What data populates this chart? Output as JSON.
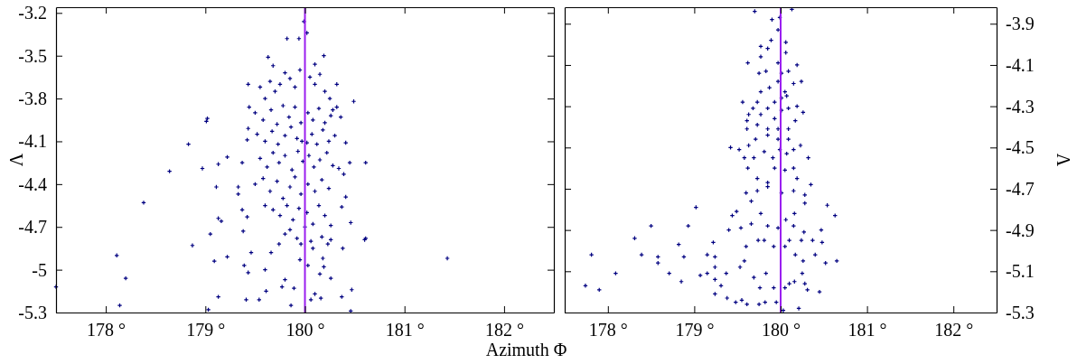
{
  "chart_data": [
    {
      "type": "scatter",
      "xlabel": "Azimuth Φ",
      "ylabel": "Λ",
      "xlim": [
        177.5,
        182.5
      ],
      "ylim": [
        -5.3,
        -3.16
      ],
      "xticks": [
        {
          "value": 178,
          "label": "178 °"
        },
        {
          "value": 179,
          "label": "179 °"
        },
        {
          "value": 180,
          "label": "180 °"
        },
        {
          "value": 181,
          "label": "181 °"
        },
        {
          "value": 182,
          "label": "182 °"
        }
      ],
      "yticks": [
        -3.2,
        -3.5,
        -3.8,
        -4.1,
        -4.4,
        -4.7,
        -5,
        -5.3
      ],
      "grid": false,
      "marker": "cross",
      "ref_lines": [
        {
          "axis": "x",
          "value": 180,
          "color": "#9a1ff0"
        }
      ],
      "series": [
        {
          "color": "#000080",
          "x": [
            177.5,
            178.11,
            178.14,
            178.2,
            178.38,
            178.64,
            178.83,
            178.87,
            178.97,
            179.02,
            179.01,
            179.03,
            179.05,
            179.09,
            179.11,
            179.13,
            179.13,
            179.13,
            179.16,
            179.22,
            179.22,
            181.43,
            180.49,
            180.61,
            180.61,
            180.6,
            180.46,
            180.47,
            180.46,
            180.37,
            180.38,
            180.37,
            180.41,
            180.45,
            180.39,
            180.34,
            180.41,
            180.36,
            180.32,
            180.32,
            180.19,
            180.1,
            180.02,
            179.94,
            179.82,
            179.99,
            179.63,
            179.68,
            179.43,
            179.44,
            179.43,
            179.42,
            179.37,
            179.33,
            179.33,
            179.37,
            179.42,
            179.38,
            179.39,
            179.43,
            179.41,
            179.54,
            179.61,
            179.6,
            179.66,
            179.46,
            179.86,
            179.77,
            179.8,
            179.89,
            179.95,
            180.03,
            179.96,
            180.08,
            180.18,
            180.19,
            180.15,
            180.26,
            180.1,
            180.16,
            180.06,
            180.23,
            180.26,
            180.26,
            180.17,
            179.55,
            179.6,
            179.65,
            179.7,
            179.75,
            179.8,
            179.85,
            179.9,
            179.95,
            180.05,
            180.1,
            180.15,
            180.2,
            180.25,
            180.28,
            179.5,
            179.58,
            179.66,
            179.72,
            179.78,
            179.84,
            179.9,
            179.96,
            180.03,
            180.08,
            180.14,
            180.2,
            180.26,
            179.52,
            179.6,
            179.67,
            179.73,
            179.8,
            179.86,
            179.92,
            179.97,
            180.02,
            180.07,
            180.12,
            180.18,
            180.24,
            180.3,
            179.55,
            179.62,
            179.68,
            179.74,
            179.8,
            179.87,
            179.93,
            179.98,
            180.04,
            180.09,
            180.15,
            180.22,
            180.28,
            179.5,
            179.58,
            179.65,
            179.72,
            179.78,
            179.85,
            179.9,
            179.96,
            180.03,
            180.1,
            180.17,
            180.24,
            179.6,
            179.68,
            179.75,
            179.82,
            179.88,
            179.94,
            180.02,
            180.08,
            180.14,
            180.2,
            179.8,
            179.85,
            179.92,
            180.0,
            180.06,
            179.74
          ],
          "values": [
            -5.12,
            -4.9,
            -5.25,
            -5.06,
            -4.53,
            -4.31,
            -4.12,
            -4.83,
            -4.29,
            -3.94,
            -3.96,
            -5.28,
            -4.75,
            -4.94,
            -4.42,
            -4.26,
            -5.19,
            -4.64,
            -4.66,
            -4.21,
            -4.91,
            -4.92,
            -3.82,
            -4.25,
            -4.78,
            -4.79,
            -5.29,
            -5.14,
            -4.67,
            -5.19,
            -4.85,
            -4.56,
            -4.49,
            -4.25,
            -4.33,
            -4.29,
            -4.11,
            -3.93,
            -3.86,
            -3.7,
            -3.5,
            -3.56,
            -3.34,
            -3.38,
            -3.38,
            -3.26,
            -3.51,
            -3.57,
            -3.7,
            -3.86,
            -4.01,
            -4.09,
            -4.25,
            -4.42,
            -4.47,
            -4.58,
            -4.63,
            -4.73,
            -4.97,
            -5.02,
            -5.21,
            -5.21,
            -5.15,
            -5.0,
            -4.88,
            -4.88,
            -5.25,
            -5.12,
            -5.07,
            -5.13,
            -4.93,
            -4.97,
            -4.82,
            -4.85,
            -4.92,
            -4.98,
            -5.03,
            -5.06,
            -5.17,
            -5.2,
            -5.21,
            -4.82,
            -4.79,
            -4.69,
            -4.77,
            -3.72,
            -3.8,
            -3.68,
            -3.75,
            -3.7,
            -3.62,
            -3.66,
            -3.72,
            -3.6,
            -3.65,
            -3.7,
            -3.63,
            -3.75,
            -3.8,
            -3.88,
            -3.9,
            -3.95,
            -3.88,
            -3.98,
            -3.85,
            -3.93,
            -3.86,
            -3.97,
            -3.9,
            -3.95,
            -3.87,
            -3.97,
            -3.92,
            -4.05,
            -4.1,
            -4.03,
            -4.12,
            -4.06,
            -4.0,
            -4.08,
            -4.1,
            -4.11,
            -4.05,
            -4.12,
            -4.02,
            -4.1,
            -4.06,
            -4.22,
            -4.28,
            -4.18,
            -4.25,
            -4.2,
            -4.3,
            -4.17,
            -4.24,
            -4.2,
            -4.28,
            -4.23,
            -4.18,
            -4.27,
            -4.4,
            -4.36,
            -4.45,
            -4.38,
            -4.5,
            -4.42,
            -4.35,
            -4.47,
            -4.4,
            -4.45,
            -4.37,
            -4.43,
            -4.55,
            -4.58,
            -4.62,
            -4.55,
            -4.65,
            -4.57,
            -4.6,
            -4.68,
            -4.55,
            -4.62,
            -4.75,
            -4.72,
            -4.78,
            -4.7,
            -4.8,
            -4.82
          ]
        }
      ]
    },
    {
      "type": "scatter",
      "ylabel": "Λ",
      "xlim": [
        177.5,
        182.5
      ],
      "ylim": [
        -5.3,
        -3.82
      ],
      "xticks": [
        {
          "value": 178,
          "label": "178 °"
        },
        {
          "value": 179,
          "label": "179 °"
        },
        {
          "value": 180,
          "label": "180 °"
        },
        {
          "value": 181,
          "label": "181 °"
        },
        {
          "value": 182,
          "label": "182 °"
        }
      ],
      "yticks": [
        -3.9,
        -4.1,
        -4.3,
        -4.5,
        -4.7,
        -4.9,
        -5.1,
        -5.3
      ],
      "grid": false,
      "marker": "cross",
      "ref_lines": [
        {
          "axis": "x",
          "value": 180,
          "color": "#9a1ff0"
        }
      ],
      "series": [
        {
          "color": "#000080",
          "x": [
            177.74,
            177.81,
            177.9,
            178.09,
            178.31,
            178.39,
            178.5,
            178.58,
            178.58,
            178.71,
            178.82,
            178.85,
            178.88,
            178.93,
            179.02,
            179.07,
            179.15,
            179.15,
            179.22,
            179.24,
            179.24,
            179.24,
            179.31,
            179.24,
            179.38,
            179.37,
            179.4,
            179.44,
            179.49,
            179.48,
            179.55,
            179.61,
            179.75,
            179.82,
            179.95,
            180.03,
            180.21,
            179.54,
            179.6,
            179.53,
            179.58,
            179.69,
            179.76,
            179.83,
            179.92,
            180.05,
            180.1,
            180.16,
            180.25,
            180.28,
            180.31,
            180.45,
            180.52,
            180.65,
            180.4,
            180.48,
            180.37,
            180.47,
            180.63,
            180.54,
            180.28,
            180.28,
            180.35,
            180.27,
            180.24,
            180.26,
            180.17,
            180.1,
            180.05,
            179.92,
            179.81,
            179.74,
            179.85,
            179.97,
            180.15,
            180.06,
            180.16,
            179.77,
            179.66,
            179.66,
            179.6,
            179.73,
            179.85,
            180.01,
            180.15,
            180.19,
            180.32,
            180.23,
            180.15,
            180.05,
            179.93,
            179.85,
            179.73,
            179.62,
            179.58,
            179.52,
            179.42,
            179.63,
            179.69,
            179.81,
            179.91,
            179.99,
            180.07,
            180.15,
            180.09,
            179.97,
            179.85,
            179.71,
            179.61,
            179.61,
            179.63,
            179.56,
            179.68,
            179.77,
            179.85,
            179.93,
            180.01,
            180.09,
            180.19,
            180.26,
            180.17,
            180.09,
            179.97,
            179.85,
            179.73,
            179.62,
            179.75,
            179.77,
            179.85,
            179.77,
            179.89,
            179.97,
            179.9,
            179.99,
            179.7,
            180.13,
            180.06,
            180.06,
            180.19,
            180.24,
            180.15,
            180.05,
            179.97,
            179.87,
            179.77,
            179.83,
            179.97,
            180.01,
            180.09,
            179.73,
            180.01,
            179.93,
            180.07
          ],
          "values": [
            -5.17,
            -5.02,
            -5.19,
            -5.11,
            -4.94,
            -5.02,
            -4.88,
            -5.03,
            -5.06,
            -5.11,
            -4.97,
            -5.15,
            -5.03,
            -4.88,
            -4.79,
            -5.12,
            -5.02,
            -5.11,
            -4.96,
            -5.03,
            -5.08,
            -5.14,
            -5.17,
            -5.21,
            -5.23,
            -5.11,
            -4.9,
            -4.83,
            -4.81,
            -5.25,
            -5.24,
            -5.26,
            -5.26,
            -5.25,
            -5.25,
            -5.29,
            -5.28,
            -4.89,
            -4.98,
            -5.08,
            -5.05,
            -5.13,
            -5.18,
            -5.11,
            -5.18,
            -5.18,
            -5.16,
            -5.15,
            -5.11,
            -5.16,
            -5.19,
            -5.2,
            -5.06,
            -5.05,
            -5.02,
            -4.96,
            -4.95,
            -4.9,
            -4.83,
            -4.78,
            -4.73,
            -4.77,
            -4.68,
            -4.91,
            -4.95,
            -5.05,
            -5.02,
            -4.95,
            -4.98,
            -4.98,
            -4.95,
            -4.95,
            -4.88,
            -4.89,
            -4.88,
            -4.85,
            -4.82,
            -4.82,
            -4.87,
            -4.76,
            -4.72,
            -4.71,
            -4.69,
            -4.72,
            -4.71,
            -4.65,
            -4.55,
            -4.49,
            -4.6,
            -4.61,
            -4.6,
            -4.67,
            -4.65,
            -4.6,
            -4.55,
            -4.51,
            -4.5,
            -4.49,
            -4.55,
            -4.52,
            -4.55,
            -4.51,
            -4.53,
            -4.51,
            -4.46,
            -4.46,
            -4.44,
            -4.46,
            -4.41,
            -4.37,
            -4.34,
            -4.28,
            -4.31,
            -4.34,
            -4.31,
            -4.36,
            -4.32,
            -4.31,
            -4.3,
            -4.33,
            -4.37,
            -4.41,
            -4.41,
            -4.41,
            -4.39,
            -4.09,
            -4.14,
            -4.06,
            -4.02,
            -4.01,
            -3.98,
            -3.93,
            -3.88,
            -3.87,
            -3.84,
            -3.83,
            -3.99,
            -4.04,
            -4.1,
            -4.18,
            -4.19,
            -4.23,
            -4.18,
            -4.21,
            -4.23,
            -4.13,
            -4.09,
            -4.14,
            -4.13,
            -4.28,
            -4.26,
            -4.28,
            -4.25
          ]
        }
      ]
    }
  ]
}
